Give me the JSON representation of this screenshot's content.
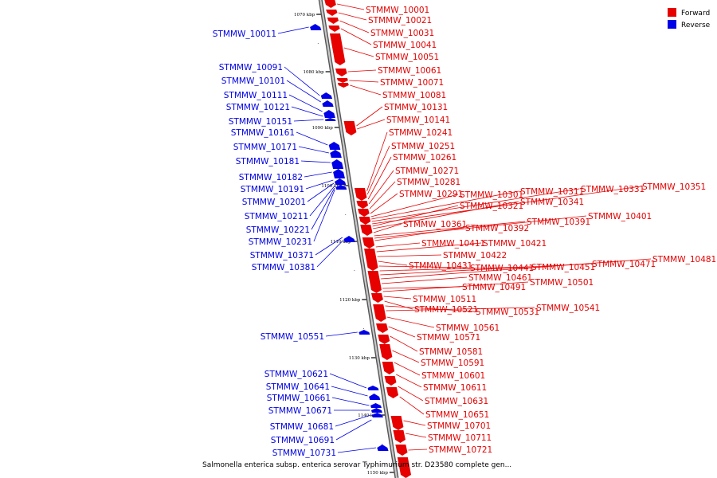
{
  "caption": "Salmonella enterica subsp. enterica serovar Typhimurium str. D23580 complete gen...",
  "legend": [
    {
      "label": "Forward",
      "color": "#e60000"
    },
    {
      "label": "Reverse",
      "color": "#0000e6"
    }
  ],
  "colors": {
    "forward": "#e60000",
    "reverse": "#0000e6",
    "backbone": "#808080"
  },
  "scale_ticks": [
    "1070 kbp",
    "1080 kbp",
    "1090 kbp",
    "1100 kbp",
    "1110 kbp",
    "1120 kbp",
    "1130 kbp",
    "1140 kbp",
    "1150 kbp"
  ],
  "forward_genes": [
    "STMMW_10001",
    "STMMW_10021",
    "STMMW_10031",
    "STMMW_10041",
    "STMMW_10051",
    "STMMW_10061",
    "STMMW_10071",
    "STMMW_10081",
    "STMMW_10131",
    "STMMW_10141",
    "STMMW_10241",
    "STMMW_10251",
    "STMMW_10261",
    "STMMW_10271",
    "STMMW_10281",
    "STMMW_10291",
    "STMMW_10301",
    "STMMW_10311",
    "STMMW_10331",
    "STMMW_10351",
    "STMMW_10321",
    "STMMW_10341",
    "STMMW_10361",
    "STMMW_10391",
    "STMMW_10401",
    "STMMW_10392",
    "STMMW_10411",
    "STMMW_10421",
    "STMMW_10422",
    "STMMW_10431",
    "STMMW_10441",
    "STMMW_10451",
    "STMMW_10471",
    "STMMW_10481",
    "STMMW_10461",
    "STMMW_10491",
    "STMMW_10501",
    "STMMW_10511",
    "STMMW_10521",
    "STMMW_10531",
    "STMMW_10541",
    "STMMW_10561",
    "STMMW_10571",
    "STMMW_10581",
    "STMMW_10591",
    "STMMW_10601",
    "STMMW_10611",
    "STMMW_10631",
    "STMMW_10651",
    "STMMW_10701",
    "STMMW_10711",
    "STMMW_10721"
  ],
  "reverse_genes": [
    "STMMW_10011",
    "STMMW_10091",
    "STMMW_10101",
    "STMMW_10111",
    "STMMW_10121",
    "STMMW_10151",
    "STMMW_10161",
    "STMMW_10171",
    "STMMW_10181",
    "STMMW_10182",
    "STMMW_10191",
    "STMMW_10201",
    "STMMW_10211",
    "STMMW_10221",
    "STMMW_10231",
    "STMMW_10371",
    "STMMW_10381",
    "STMMW_10551",
    "STMMW_10621",
    "STMMW_10641",
    "STMMW_10661",
    "STMMW_10671",
    "STMMW_10681",
    "STMMW_10691",
    "STMMW_10731"
  ]
}
